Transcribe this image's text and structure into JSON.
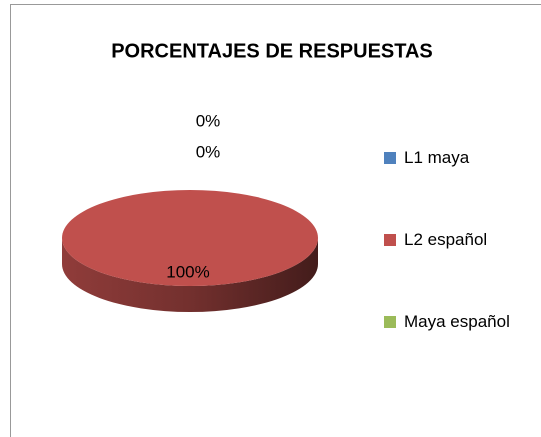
{
  "chart_data": {
    "type": "pie",
    "title": "PORCENTAJES  DE RESPUESTAS",
    "categories": [
      "L1 maya",
      "L2 español",
      "Maya español"
    ],
    "values": [
      0,
      100,
      0
    ],
    "value_labels": [
      "0%",
      "100%",
      "0%"
    ],
    "colors": [
      "#4f81bd",
      "#c0504d",
      "#9bbb59"
    ],
    "legend": "right"
  }
}
